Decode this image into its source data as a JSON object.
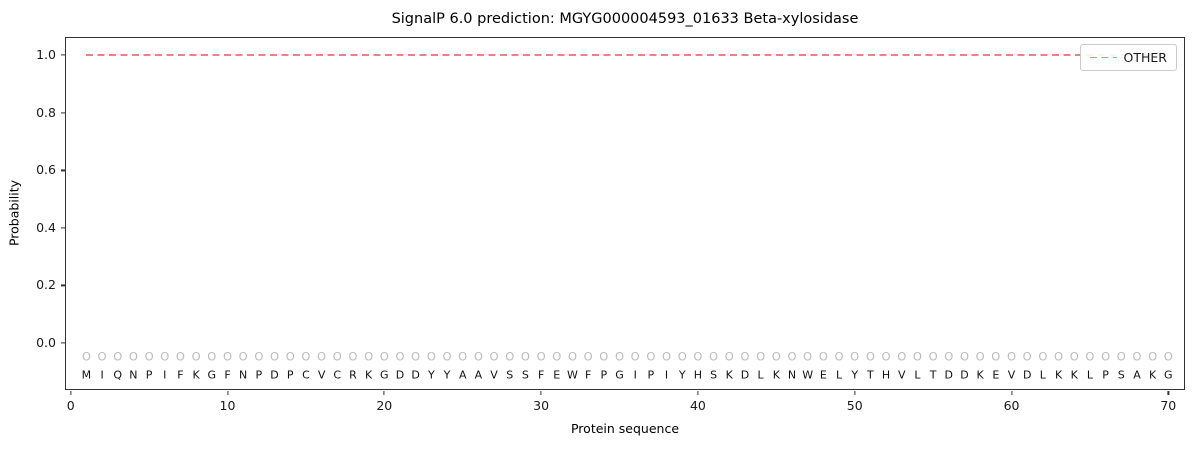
{
  "chart_data": {
    "type": "line",
    "title": "SignalP 6.0 prediction: MGYG000004593_01633 Beta-xylosidase",
    "xlabel": "Protein sequence",
    "ylabel": "Probability",
    "xlim": [
      -0.3,
      71.0
    ],
    "ylim": [
      -0.16,
      1.06
    ],
    "xticks": [
      0,
      10,
      20,
      30,
      40,
      50,
      60,
      70
    ],
    "yticks": [
      0.0,
      0.2,
      0.4,
      0.6,
      0.8,
      1.0
    ],
    "ytick_labels": [
      "0.0",
      "0.2",
      "0.4",
      "0.6",
      "0.8",
      "1.0"
    ],
    "grid": false,
    "legend": {
      "position": "upper right",
      "entries": [
        {
          "label": "OTHER",
          "color": "#f08080",
          "linestyle": "dashed"
        }
      ]
    },
    "series": [
      {
        "name": "OTHER",
        "color": "#f08080",
        "linestyle": "dashed",
        "x": [
          1,
          2,
          3,
          4,
          5,
          6,
          7,
          8,
          9,
          10,
          11,
          12,
          13,
          14,
          15,
          16,
          17,
          18,
          19,
          20,
          21,
          22,
          23,
          24,
          25,
          26,
          27,
          28,
          29,
          30,
          31,
          32,
          33,
          34,
          35,
          36,
          37,
          38,
          39,
          40,
          41,
          42,
          43,
          44,
          45,
          46,
          47,
          48,
          49,
          50,
          51,
          52,
          53,
          54,
          55,
          56,
          57,
          58,
          59,
          60,
          61,
          62,
          63,
          64,
          65,
          66,
          67,
          68,
          69,
          70
        ],
        "values": [
          1.0,
          1.0,
          1.0,
          1.0,
          1.0,
          1.0,
          1.0,
          1.0,
          1.0,
          1.0,
          1.0,
          1.0,
          1.0,
          1.0,
          1.0,
          1.0,
          1.0,
          1.0,
          1.0,
          1.0,
          1.0,
          1.0,
          1.0,
          1.0,
          1.0,
          1.0,
          1.0,
          1.0,
          1.0,
          1.0,
          1.0,
          1.0,
          1.0,
          1.0,
          1.0,
          1.0,
          1.0,
          1.0,
          1.0,
          1.0,
          1.0,
          1.0,
          1.0,
          1.0,
          1.0,
          1.0,
          1.0,
          1.0,
          1.0,
          1.0,
          1.0,
          1.0,
          1.0,
          1.0,
          1.0,
          1.0,
          1.0,
          1.0,
          1.0,
          1.0,
          1.0,
          1.0,
          1.0,
          1.0,
          1.0,
          1.0,
          1.0,
          1.0,
          1.0,
          1.0
        ]
      }
    ],
    "sequence": "MIQNPIFKGFNPDPCVCRKGDDYYAAVSSFEWFPGIPIYHSKDLKNWELYTHVLTDDKEVDLKKLPSAKG",
    "per_position_label": "O",
    "marker_y": -0.05,
    "letter_y": -0.112
  }
}
